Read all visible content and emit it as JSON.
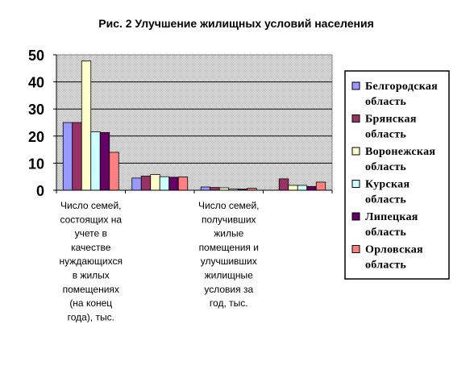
{
  "chart_data": {
    "type": "bar",
    "title": "Рис. 2 Улучшение жилищных условий населения",
    "categories": [
      [
        "Число семей,",
        "состоящих на",
        "учете в",
        "качестве",
        "нуждающихся",
        "в жилых",
        "помещениях",
        "(на конец",
        "года), тыс."
      ],
      [],
      [
        "Число семей,",
        "получивших",
        "жилые",
        "помещения и",
        "улучшивших",
        "жилищные",
        "условия  за",
        "год, тыс."
      ],
      []
    ],
    "series": [
      {
        "name": [
          "Белгородская",
          "область"
        ],
        "color": "#9999ff",
        "values": [
          25,
          4.5,
          1.2,
          0
        ]
      },
      {
        "name": [
          "Брянская",
          "область"
        ],
        "color": "#993366",
        "values": [
          25,
          5.2,
          1.0,
          4.2
        ]
      },
      {
        "name": [
          "Воронежская",
          "область"
        ],
        "color": "#ffffcc",
        "values": [
          47.7,
          5.8,
          0.9,
          1.8
        ]
      },
      {
        "name": [
          "Курская",
          "область"
        ],
        "color": "#ccffff",
        "values": [
          21.6,
          5.0,
          0.5,
          1.8
        ]
      },
      {
        "name": [
          "Липецкая",
          "область"
        ],
        "color": "#660066",
        "values": [
          21.3,
          4.8,
          0.4,
          1.4
        ]
      },
      {
        "name": [
          "Орловская",
          "область"
        ],
        "color": "#ff8080",
        "values": [
          14.0,
          4.9,
          0.7,
          3.0
        ]
      }
    ],
    "ylim": [
      0,
      50
    ],
    "yticks": [
      "0",
      "10",
      "20",
      "30",
      "40",
      "50"
    ],
    "plot_background": "#c0c0c0",
    "grid": true,
    "legend_position": "right"
  }
}
